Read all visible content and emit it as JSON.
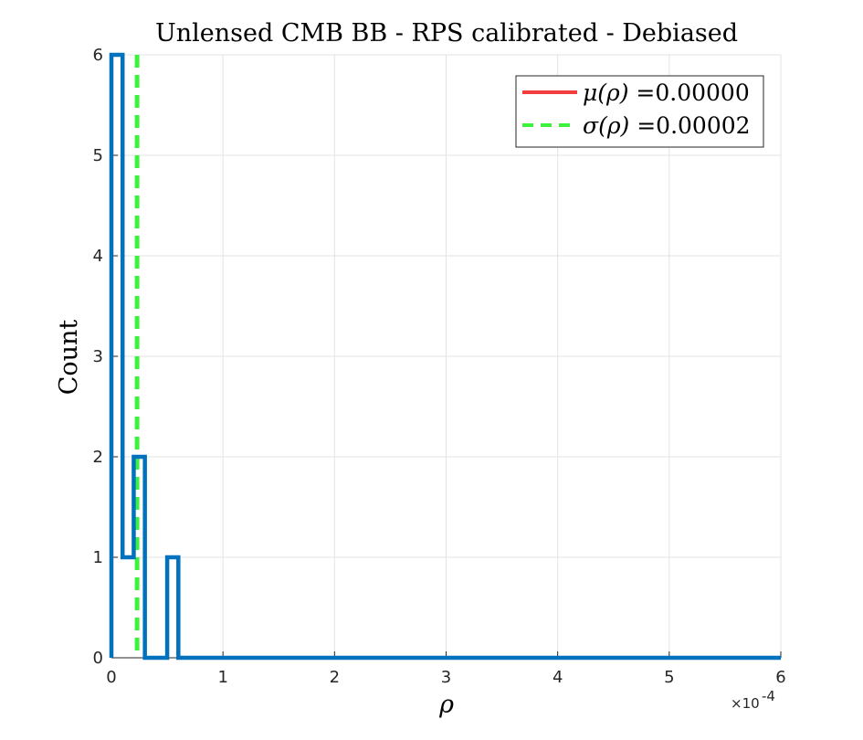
{
  "chart_data": {
    "type": "histogram",
    "title": "Unlensed CMB BB - RPS calibrated - Debiased",
    "xlabel": "ρ",
    "ylabel": "Count",
    "x_exponent_label": "×10",
    "x_exponent_power": "-4",
    "xlim": [
      0,
      6
    ],
    "ylim": [
      0,
      6
    ],
    "x_unit_scale": 0.0001,
    "xticks": [
      0,
      1,
      2,
      3,
      4,
      5,
      6
    ],
    "yticks": [
      0,
      1,
      2,
      3,
      4,
      5,
      6
    ],
    "xtick_labels": [
      "0",
      "1",
      "2",
      "3",
      "4",
      "5",
      "6"
    ],
    "ytick_labels": [
      "0",
      "1",
      "2",
      "3",
      "4",
      "5",
      "6"
    ],
    "grid": true,
    "legend_position": "top-right",
    "histogram": {
      "color": "#0072BD",
      "bin_edges": [
        0.0,
        0.1,
        0.2,
        0.3,
        0.4,
        0.5,
        0.6,
        6.0
      ],
      "counts": [
        6,
        1,
        2,
        0,
        0,
        1,
        0
      ]
    },
    "lines": [
      {
        "name": "μ(ρ) =0.00000",
        "legend_prefix": "μ(ρ)",
        "legend_value": " =0.00000",
        "x": 0.0,
        "style": "solid",
        "color": "#F23E3E"
      },
      {
        "name": "σ(ρ) =0.00002",
        "legend_prefix": "σ(ρ)",
        "legend_value": " =0.00002",
        "x": 0.23,
        "style": "dashed",
        "color": "#3DF23D"
      }
    ]
  }
}
